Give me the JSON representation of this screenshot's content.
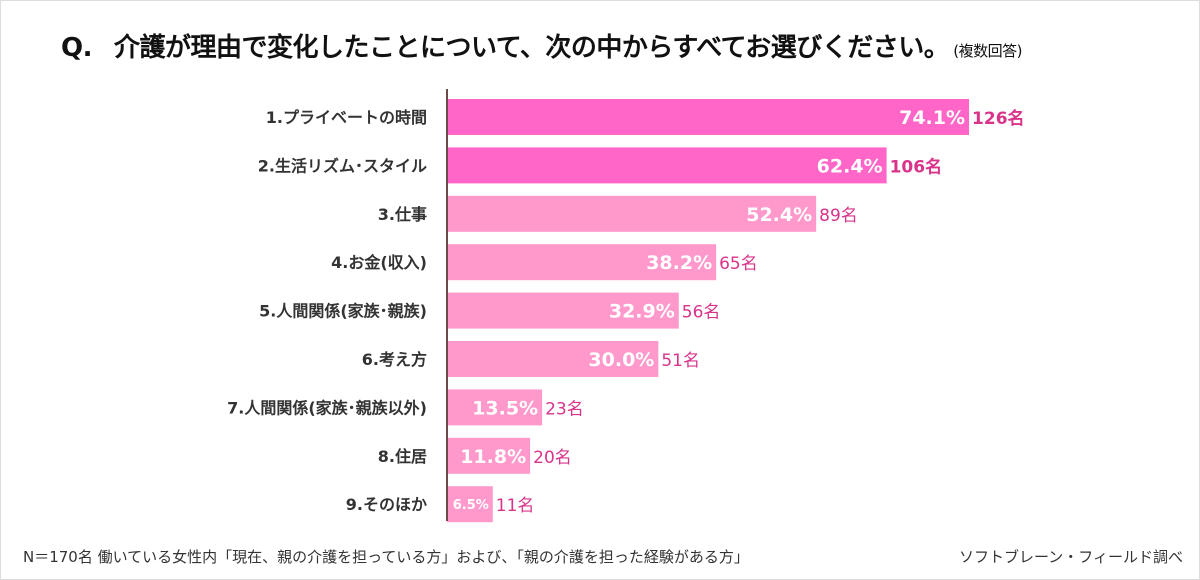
{
  "chart_data": {
    "type": "bar",
    "orientation": "horizontal",
    "title_prefix": "Q.",
    "title": "介護が理由で変化したことについて、次の中からすべてお選びください。",
    "subtitle": "(複数回答)",
    "categories": [
      "1.プライベートの時間",
      "2.生活リズム･スタイル",
      "3.仕事",
      "4.お金(収入)",
      "5.人間関係(家族･親族)",
      "6.考え方",
      "7.人間関係(家族･親族以外)",
      "8.住居",
      "9.そのほか"
    ],
    "values": [
      74.1,
      62.4,
      52.4,
      38.2,
      32.9,
      30.0,
      13.5,
      11.8,
      6.5
    ],
    "value_labels": [
      "74.1%",
      "62.4%",
      "52.4%",
      "38.2%",
      "32.9%",
      "30.0%",
      "13.5%",
      "11.8%",
      "6.5%"
    ],
    "counts": [
      "126名",
      "106名",
      "89名",
      "65名",
      "56名",
      "51名",
      "23名",
      "20名",
      "11名"
    ],
    "highlight_count": 2,
    "colors": {
      "highlight": "#ff66c8",
      "normal": "#ff99cc",
      "count_text": "#d9338a",
      "axis": "#6b4a4a"
    },
    "xlim": [
      0,
      100
    ],
    "grid": false,
    "legend": "none"
  },
  "footnote": "N＝170名 働いている女性内「現在、親の介護を担っている方」および、「親の介護を担った経験がある方」",
  "source": "ソフトブレーン・フィールド調べ"
}
